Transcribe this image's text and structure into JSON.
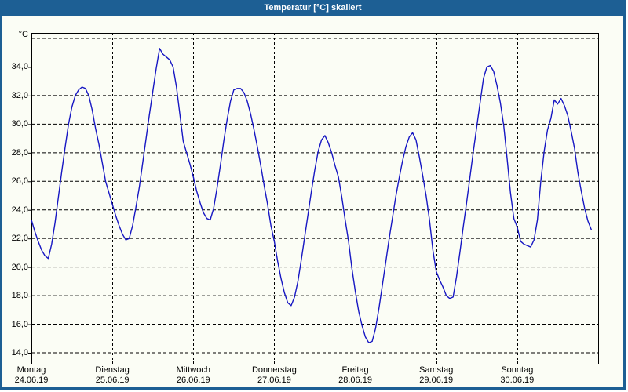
{
  "window": {
    "title": "Temperatur [°C] skaliert"
  },
  "colors": {
    "title_bar": "#1d5f94",
    "window_border": "#1d5f94",
    "panel_background": "#fbfdf5",
    "grid": "#000000",
    "axis": "#000000",
    "text": "#000000",
    "line": "#1717c3"
  },
  "y_axis": {
    "unit": "°C",
    "ticks": [
      {
        "label": "34,0",
        "value": 34
      },
      {
        "label": "32,0",
        "value": 32
      },
      {
        "label": "30,0",
        "value": 30
      },
      {
        "label": "28,0",
        "value": 28
      },
      {
        "label": "26,0",
        "value": 26
      },
      {
        "label": "24,0",
        "value": 24
      },
      {
        "label": "22,0",
        "value": 22
      },
      {
        "label": "20,0",
        "value": 20
      },
      {
        "label": "18,0",
        "value": 18
      },
      {
        "label": "16,0",
        "value": 16
      },
      {
        "label": "14,0",
        "value": 14
      }
    ],
    "top_gridline_value": 36
  },
  "x_axis": {
    "days": [
      {
        "name": "Montag",
        "date": "24.06.19"
      },
      {
        "name": "Dienstag",
        "date": "25.06.19"
      },
      {
        "name": "Mittwoch",
        "date": "26.06.19"
      },
      {
        "name": "Donnerstag",
        "date": "27.06.19"
      },
      {
        "name": "Freitag",
        "date": "28.06.19"
      },
      {
        "name": "Samstag",
        "date": "29.06.19"
      },
      {
        "name": "Sonntag",
        "date": "30.06.19"
      }
    ]
  },
  "chart_data": {
    "type": "line",
    "title": "Temperatur [°C] skaliert",
    "ylabel": "°C",
    "ylim": [
      13.4,
      36.5
    ],
    "y_gridlines": [
      36,
      34,
      32,
      30,
      28,
      26,
      24,
      22,
      20,
      18,
      16,
      14
    ],
    "grid": "dashed",
    "legend": "none",
    "x_unit": "hours since Montag 24.06.19 00:00",
    "hours_per_day": 24,
    "num_days": 7,
    "series": [
      {
        "name": "Temperatur [°C]",
        "points": [
          [
            0,
            23.3
          ],
          [
            1,
            22.5
          ],
          [
            2,
            21.8
          ],
          [
            3,
            21.2
          ],
          [
            4,
            20.8
          ],
          [
            5,
            20.6
          ],
          [
            6,
            21.6
          ],
          [
            7,
            23.1
          ],
          [
            8,
            24.9
          ],
          [
            9,
            26.7
          ],
          [
            10,
            28.4
          ],
          [
            11,
            30.0
          ],
          [
            12,
            31.2
          ],
          [
            13,
            32.0
          ],
          [
            14,
            32.4
          ],
          [
            15,
            32.6
          ],
          [
            16,
            32.5
          ],
          [
            17,
            32.0
          ],
          [
            18,
            31.0
          ],
          [
            19,
            29.7
          ],
          [
            20,
            28.6
          ],
          [
            21,
            27.3
          ],
          [
            22,
            26.0
          ],
          [
            23,
            25.2
          ],
          [
            24,
            24.4
          ],
          [
            25,
            23.6
          ],
          [
            26,
            22.9
          ],
          [
            27,
            22.3
          ],
          [
            28,
            21.9
          ],
          [
            29,
            22.0
          ],
          [
            30,
            22.9
          ],
          [
            31,
            24.2
          ],
          [
            32,
            25.6
          ],
          [
            33,
            27.3
          ],
          [
            34,
            29.0
          ],
          [
            35,
            30.7
          ],
          [
            36,
            32.3
          ],
          [
            37,
            33.9
          ],
          [
            38,
            35.3
          ],
          [
            39,
            34.9
          ],
          [
            40,
            34.7
          ],
          [
            41,
            34.5
          ],
          [
            42,
            34.0
          ],
          [
            43,
            32.6
          ],
          [
            44,
            30.7
          ],
          [
            45,
            28.8
          ],
          [
            46,
            28.0
          ],
          [
            47,
            27.2
          ],
          [
            48,
            26.3
          ],
          [
            49,
            25.3
          ],
          [
            50,
            24.5
          ],
          [
            51,
            23.8
          ],
          [
            52,
            23.4
          ],
          [
            53,
            23.3
          ],
          [
            54,
            24.1
          ],
          [
            55,
            25.5
          ],
          [
            56,
            27.1
          ],
          [
            57,
            28.8
          ],
          [
            58,
            30.3
          ],
          [
            59,
            31.6
          ],
          [
            60,
            32.4
          ],
          [
            61,
            32.5
          ],
          [
            62,
            32.5
          ],
          [
            63,
            32.2
          ],
          [
            64,
            31.6
          ],
          [
            65,
            30.7
          ],
          [
            66,
            29.6
          ],
          [
            67,
            28.4
          ],
          [
            68,
            27.1
          ],
          [
            69,
            25.7
          ],
          [
            70,
            24.4
          ],
          [
            71,
            22.9
          ],
          [
            72,
            21.8
          ],
          [
            73,
            20.4
          ],
          [
            74,
            19.2
          ],
          [
            75,
            18.2
          ],
          [
            76,
            17.5
          ],
          [
            77,
            17.3
          ],
          [
            78,
            17.9
          ],
          [
            79,
            19.0
          ],
          [
            80,
            20.5
          ],
          [
            81,
            22.1
          ],
          [
            82,
            23.7
          ],
          [
            83,
            25.3
          ],
          [
            84,
            26.8
          ],
          [
            85,
            28.1
          ],
          [
            86,
            28.9
          ],
          [
            87,
            29.2
          ],
          [
            88,
            28.7
          ],
          [
            89,
            28.0
          ],
          [
            90,
            27.1
          ],
          [
            91,
            26.3
          ],
          [
            92,
            24.9
          ],
          [
            93,
            23.3
          ],
          [
            94,
            21.8
          ],
          [
            95,
            19.9
          ],
          [
            96,
            18.3
          ],
          [
            97,
            16.9
          ],
          [
            98,
            15.9
          ],
          [
            99,
            15.1
          ],
          [
            100,
            14.7
          ],
          [
            101,
            14.8
          ],
          [
            102,
            15.7
          ],
          [
            103,
            17.1
          ],
          [
            104,
            18.7
          ],
          [
            105,
            20.3
          ],
          [
            106,
            21.9
          ],
          [
            107,
            23.4
          ],
          [
            108,
            24.9
          ],
          [
            109,
            26.2
          ],
          [
            110,
            27.4
          ],
          [
            111,
            28.4
          ],
          [
            112,
            29.1
          ],
          [
            113,
            29.4
          ],
          [
            114,
            28.9
          ],
          [
            115,
            27.7
          ],
          [
            116,
            26.4
          ],
          [
            117,
            25.0
          ],
          [
            118,
            23.3
          ],
          [
            119,
            21.2
          ],
          [
            120,
            19.7
          ],
          [
            121,
            19.1
          ],
          [
            122,
            18.6
          ],
          [
            123,
            18.0
          ],
          [
            124,
            17.8
          ],
          [
            125,
            17.9
          ],
          [
            126,
            19.3
          ],
          [
            127,
            21.0
          ],
          [
            128,
            22.8
          ],
          [
            129,
            24.5
          ],
          [
            130,
            26.3
          ],
          [
            131,
            28.1
          ],
          [
            132,
            29.8
          ],
          [
            133,
            31.5
          ],
          [
            134,
            33.2
          ],
          [
            135,
            34.0
          ],
          [
            136,
            34.1
          ],
          [
            137,
            33.7
          ],
          [
            138,
            32.7
          ],
          [
            139,
            31.5
          ],
          [
            140,
            29.9
          ],
          [
            141,
            27.6
          ],
          [
            142,
            25.2
          ],
          [
            143,
            23.4
          ],
          [
            144,
            22.8
          ],
          [
            145,
            21.8
          ],
          [
            146,
            21.6
          ],
          [
            147,
            21.5
          ],
          [
            148,
            21.4
          ],
          [
            149,
            21.9
          ],
          [
            150,
            23.3
          ],
          [
            151,
            26.0
          ],
          [
            152,
            28.1
          ],
          [
            153,
            29.6
          ],
          [
            154,
            30.4
          ],
          [
            155,
            31.7
          ],
          [
            156,
            31.4
          ],
          [
            157,
            31.8
          ],
          [
            158,
            31.3
          ],
          [
            159,
            30.6
          ],
          [
            160,
            29.5
          ],
          [
            161,
            28.3
          ],
          [
            162,
            26.6
          ],
          [
            163,
            25.3
          ],
          [
            164,
            24.1
          ],
          [
            165,
            23.2
          ],
          [
            166,
            22.6
          ]
        ]
      }
    ]
  }
}
